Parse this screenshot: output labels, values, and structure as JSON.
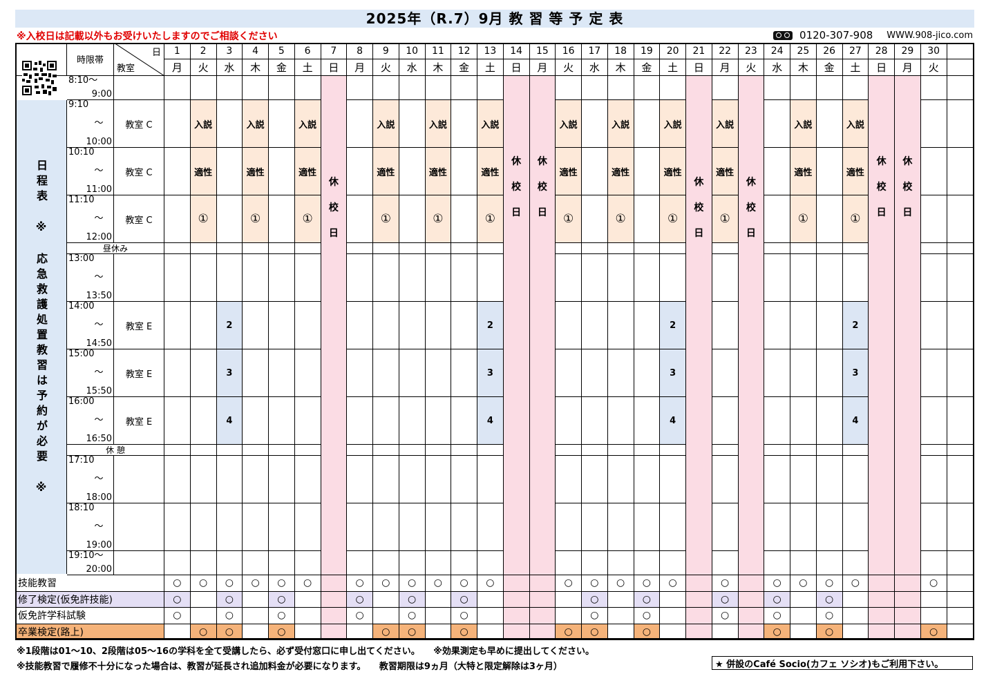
{
  "title": "2025年（R.7）9月 教 習 等 予 定 表",
  "notice": "※入校日は記載以外もお受けいたしますのでご相談ください",
  "contact": {
    "phone": "0120-307-908",
    "url": "WWW.908-jico.com",
    "phone_icon": "freedial-icon"
  },
  "header": {
    "time_label": "時限帯",
    "day_label": "日",
    "room_label": "教室"
  },
  "days": [
    {
      "d": "1",
      "w": "月"
    },
    {
      "d": "2",
      "w": "火"
    },
    {
      "d": "3",
      "w": "水"
    },
    {
      "d": "4",
      "w": "木"
    },
    {
      "d": "5",
      "w": "金"
    },
    {
      "d": "6",
      "w": "土"
    },
    {
      "d": "7",
      "w": "日"
    },
    {
      "d": "8",
      "w": "月"
    },
    {
      "d": "9",
      "w": "火"
    },
    {
      "d": "10",
      "w": "水"
    },
    {
      "d": "11",
      "w": "木"
    },
    {
      "d": "12",
      "w": "金"
    },
    {
      "d": "13",
      "w": "土"
    },
    {
      "d": "14",
      "w": "日"
    },
    {
      "d": "15",
      "w": "月"
    },
    {
      "d": "16",
      "w": "火"
    },
    {
      "d": "17",
      "w": "水"
    },
    {
      "d": "18",
      "w": "木"
    },
    {
      "d": "19",
      "w": "金"
    },
    {
      "d": "20",
      "w": "土"
    },
    {
      "d": "21",
      "w": "日"
    },
    {
      "d": "22",
      "w": "月"
    },
    {
      "d": "23",
      "w": "火"
    },
    {
      "d": "24",
      "w": "水"
    },
    {
      "d": "25",
      "w": "木"
    },
    {
      "d": "26",
      "w": "金"
    },
    {
      "d": "27",
      "w": "土"
    },
    {
      "d": "28",
      "w": "日"
    },
    {
      "d": "29",
      "w": "月"
    },
    {
      "d": "30",
      "w": "火"
    }
  ],
  "closed_days": [
    "7",
    "14",
    "15",
    "21",
    "23",
    "28",
    "29"
  ],
  "closed_text": "休校日",
  "periods": [
    {
      "start": "8:10～",
      "mid": "",
      "end": "9:00",
      "room": "",
      "inline": true
    },
    {
      "start": "9:10",
      "mid": "～",
      "end": "10:00",
      "room": "教室 C"
    },
    {
      "start": "10:10",
      "mid": "～",
      "end": "11:00",
      "room": "教室 C"
    },
    {
      "start": "11:10",
      "mid": "～",
      "end": "12:00",
      "room": "教室 C"
    },
    {
      "break": "昼休み"
    },
    {
      "start": "13:00",
      "mid": "～",
      "end": "13:50",
      "room": ""
    },
    {
      "start": "14:00",
      "mid": "～",
      "end": "14:50",
      "room": "教室 E"
    },
    {
      "start": "15:00",
      "mid": "～",
      "end": "15:50",
      "room": "教室 E"
    },
    {
      "start": "16:00",
      "mid": "～",
      "end": "16:50",
      "room": "教室 E"
    },
    {
      "break": "休 憩"
    },
    {
      "start": "17:10",
      "mid": "～",
      "end": "18:00",
      "room": ""
    },
    {
      "start": "18:10",
      "mid": "～",
      "end": "19:00",
      "room": ""
    },
    {
      "start": "19:10～",
      "mid": "",
      "end": "20:00",
      "room": "",
      "inline": true
    }
  ],
  "sessions_am": {
    "days": [
      "2",
      "4",
      "6",
      "9",
      "11",
      "13",
      "16",
      "18",
      "20",
      "22",
      "25",
      "27"
    ],
    "labels": [
      "入説",
      "適性",
      "①"
    ],
    "color": "#fde9d9"
  },
  "sessions_pm": {
    "days": [
      "3",
      "13",
      "20",
      "27"
    ],
    "labels": [
      "2",
      "3",
      "4"
    ],
    "color": "#dce6f4"
  },
  "sidebar_text": "日程表　※　応急救護処置教習は予約が必要　※",
  "bottom_rows": [
    {
      "label": "技能教習",
      "bg": "",
      "mark_bg": "",
      "days": [
        "1",
        "2",
        "3",
        "4",
        "5",
        "6",
        "8",
        "9",
        "10",
        "11",
        "12",
        "13",
        "16",
        "17",
        "18",
        "19",
        "20",
        "22",
        "24",
        "25",
        "26",
        "27",
        "30"
      ]
    },
    {
      "label": "修了検定(仮免許技能)",
      "bg": "#e4dff5",
      "mark_bg": "#e4dff5",
      "days": [
        "1",
        "3",
        "5",
        "8",
        "10",
        "12",
        "17",
        "19",
        "22",
        "24",
        "26"
      ]
    },
    {
      "label": "仮免許学科試験",
      "bg": "",
      "mark_bg": "",
      "days": [
        "1",
        "3",
        "5",
        "8",
        "10",
        "12",
        "17",
        "19",
        "22",
        "24",
        "26"
      ]
    },
    {
      "label": "卒業検定(路上)",
      "bg": "#f5b37a",
      "mark_bg": "#f5b37a",
      "days": [
        "2",
        "3",
        "5",
        "9",
        "10",
        "12",
        "16",
        "17",
        "19",
        "24",
        "26",
        "30"
      ]
    }
  ],
  "mark": "○",
  "footer": {
    "line1": "※1段階は01～10、2段階は05～16の学科を全て受講したら、必ず受付窓口に申し出てください。　　※効果測定も早めに提出してください。",
    "line2": "※技能教習で履修不十分になった場合は、教習が延長され追加料金が必要になります。　　教習期限は9ヵ月（大特と限定解除は3ヶ月）",
    "box": "★ 併設のCafé Socio(カフェ ソシオ)もご利用下さい。"
  },
  "colors": {
    "closed": "#fbdce4",
    "header_blue": "#dce8f6"
  }
}
